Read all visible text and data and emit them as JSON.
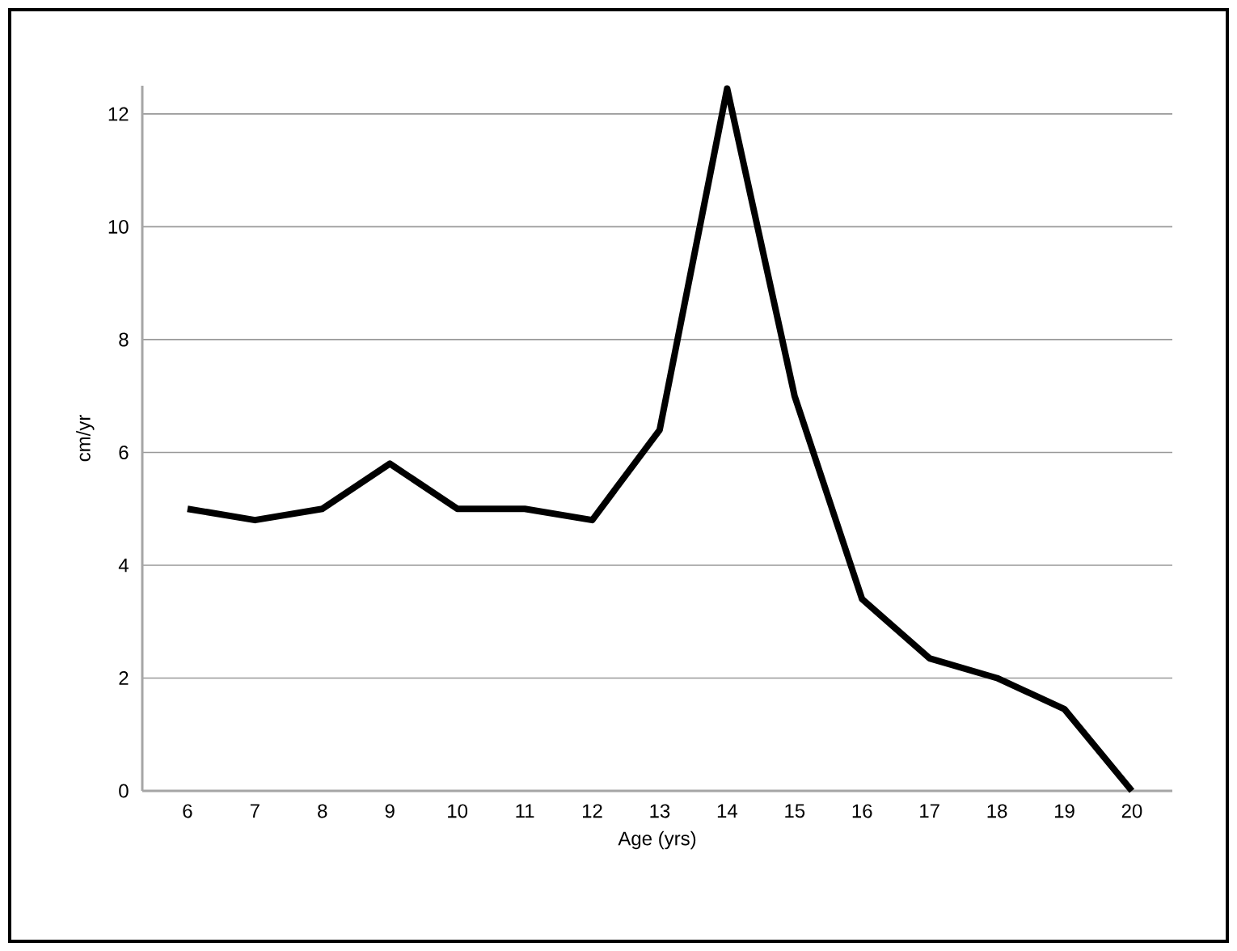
{
  "chart_data": {
    "type": "line",
    "xlabel": "Age (yrs)",
    "ylabel": "cm/yr",
    "categories": [
      "6",
      "7",
      "8",
      "9",
      "10",
      "11",
      "12",
      "13",
      "14",
      "15",
      "16",
      "17",
      "18",
      "19",
      "20"
    ],
    "values": [
      5.0,
      4.8,
      5.0,
      5.8,
      5.0,
      5.0,
      4.8,
      6.4,
      12.45,
      7.0,
      3.4,
      2.35,
      2.0,
      1.45,
      0
    ],
    "color": "#000000",
    "ylim": [
      0,
      12.5
    ],
    "yticks": [
      0,
      2,
      4,
      6,
      8,
      10,
      12
    ],
    "grid": "y",
    "marker": "none",
    "line_style": "solid"
  }
}
